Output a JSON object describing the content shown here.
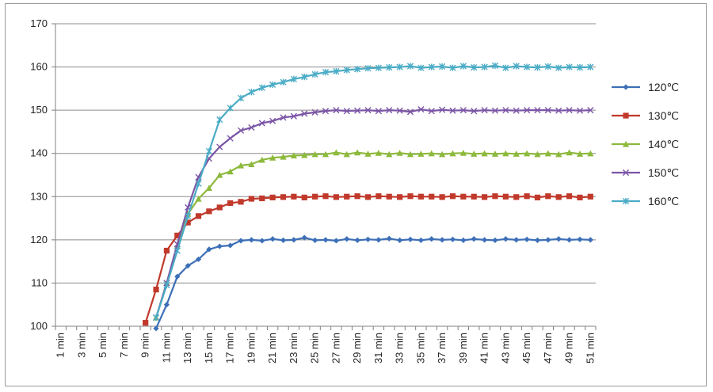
{
  "chart_data": {
    "type": "line",
    "title": "",
    "xlabel": "",
    "ylabel": "",
    "ylim": [
      100,
      170
    ],
    "yticks": [
      "100",
      "110",
      "120",
      "130",
      "140",
      "150",
      "160",
      "170"
    ],
    "x_tick_labels": [
      "1 min",
      "3 min",
      "5 min",
      "7 min",
      "9 min",
      "11 min",
      "13 min",
      "15 min",
      "17 min",
      "19 min",
      "21 min",
      "23 min",
      "25 min",
      "27 min",
      "29 min",
      "31 min",
      "33 min",
      "35 min",
      "37 min",
      "39 min",
      "41 min",
      "43 min",
      "45 min",
      "47 min",
      "49 min",
      "51 min"
    ],
    "x_range": [
      1,
      51
    ],
    "legend_position": "right",
    "series": [
      {
        "name": "120℃",
        "color": "#3c6fb7",
        "marker": "diamond",
        "x": [
          10,
          11,
          12,
          13,
          14,
          15,
          16,
          17,
          18,
          19,
          20,
          21,
          22,
          23,
          24,
          25,
          26,
          27,
          28,
          29,
          30,
          31,
          32,
          33,
          34,
          35,
          36,
          37,
          38,
          39,
          40,
          41,
          42,
          43,
          44,
          45,
          46,
          47,
          48,
          49,
          50,
          51
        ],
        "y": [
          99.5,
          105,
          111.5,
          114,
          115.5,
          117.8,
          118.5,
          118.7,
          119.8,
          120,
          119.8,
          120.2,
          119.9,
          120,
          120.5,
          119.9,
          120,
          119.8,
          120.2,
          119.9,
          120.1,
          120,
          120.3,
          119.9,
          120.1,
          119.9,
          120.2,
          120,
          120.1,
          119.9,
          120.2,
          120,
          119.9,
          120.2,
          120,
          120.1,
          119.9,
          120,
          120.2,
          120,
          120.1,
          120
        ]
      },
      {
        "name": "130℃",
        "color": "#c0392b",
        "marker": "square",
        "x": [
          9,
          10,
          11,
          12,
          13,
          14,
          15,
          16,
          17,
          18,
          19,
          20,
          21,
          22,
          23,
          24,
          25,
          26,
          27,
          28,
          29,
          30,
          31,
          32,
          33,
          34,
          35,
          36,
          37,
          38,
          39,
          40,
          41,
          42,
          43,
          44,
          45,
          46,
          47,
          48,
          49,
          50,
          51
        ],
        "y": [
          100.8,
          108.5,
          117.5,
          121,
          124,
          125.5,
          126.6,
          127.5,
          128.5,
          128.8,
          129.5,
          129.6,
          129.8,
          129.9,
          130,
          129.8,
          130,
          130.1,
          129.9,
          130,
          130.1,
          129.9,
          130.1,
          130,
          129.9,
          130.1,
          130,
          130,
          129.9,
          130.1,
          130,
          130,
          129.9,
          130.1,
          130,
          129.9,
          130.1,
          129.8,
          130.1,
          129.9,
          130.1,
          129.8,
          130
        ]
      },
      {
        "name": "140℃",
        "color": "#8db93c",
        "marker": "triangle",
        "x": [
          10,
          11,
          12,
          13,
          14,
          15,
          16,
          17,
          18,
          19,
          20,
          21,
          22,
          23,
          24,
          25,
          26,
          27,
          28,
          29,
          30,
          31,
          32,
          33,
          34,
          35,
          36,
          37,
          38,
          39,
          40,
          41,
          42,
          43,
          44,
          45,
          46,
          47,
          48,
          49,
          50,
          51
        ],
        "y": [
          102,
          110,
          118.5,
          126,
          129.5,
          132,
          135,
          135.8,
          137.2,
          137.5,
          138.5,
          139,
          139.2,
          139.5,
          139.6,
          139.8,
          139.8,
          140.2,
          139.8,
          140.2,
          139.9,
          140.1,
          139.8,
          140.1,
          139.8,
          139.9,
          140,
          139.8,
          140,
          140.1,
          139.9,
          140,
          139.9,
          140,
          139.9,
          140,
          139.8,
          140,
          139.8,
          140.2,
          139.9,
          140
        ]
      },
      {
        "name": "150℃",
        "color": "#7b55a6",
        "marker": "x",
        "x": [
          10,
          11,
          12,
          13,
          14,
          15,
          16,
          17,
          18,
          19,
          20,
          21,
          22,
          23,
          24,
          25,
          26,
          27,
          28,
          29,
          30,
          31,
          32,
          33,
          34,
          35,
          36,
          37,
          38,
          39,
          40,
          41,
          42,
          43,
          44,
          45,
          46,
          47,
          48,
          49,
          50,
          51
        ],
        "y": [
          102,
          110,
          119,
          127.5,
          134.5,
          138.8,
          141.5,
          143.5,
          145.3,
          146,
          147,
          147.5,
          148.3,
          148.6,
          149.2,
          149.5,
          149.8,
          150,
          149.8,
          149.9,
          150,
          149.8,
          150,
          149.9,
          149.6,
          150.2,
          149.8,
          150.1,
          149.9,
          150,
          149.8,
          150,
          149.9,
          150,
          149.9,
          150,
          150,
          150,
          149.9,
          150,
          149.9,
          150
        ]
      },
      {
        "name": "160℃",
        "color": "#4bacc6",
        "marker": "asterisk",
        "x": [
          10,
          11,
          12,
          13,
          14,
          15,
          16,
          17,
          18,
          19,
          20,
          21,
          22,
          23,
          24,
          25,
          26,
          27,
          28,
          29,
          30,
          31,
          32,
          33,
          34,
          35,
          36,
          37,
          38,
          39,
          40,
          41,
          42,
          43,
          44,
          45,
          46,
          47,
          48,
          49,
          50,
          51
        ],
        "y": [
          102,
          109.5,
          117.5,
          125.5,
          133,
          140.5,
          147.8,
          150.5,
          152.8,
          154.2,
          155.2,
          155.9,
          156.5,
          157.2,
          157.7,
          158.3,
          158.8,
          159,
          159.3,
          159.5,
          159.7,
          159.8,
          159.9,
          160,
          160.2,
          159.8,
          160,
          160.1,
          159.8,
          160.2,
          159.9,
          160,
          160.3,
          159.8,
          160.2,
          160,
          159.9,
          160.1,
          159.8,
          160,
          159.9,
          160
        ]
      }
    ]
  }
}
